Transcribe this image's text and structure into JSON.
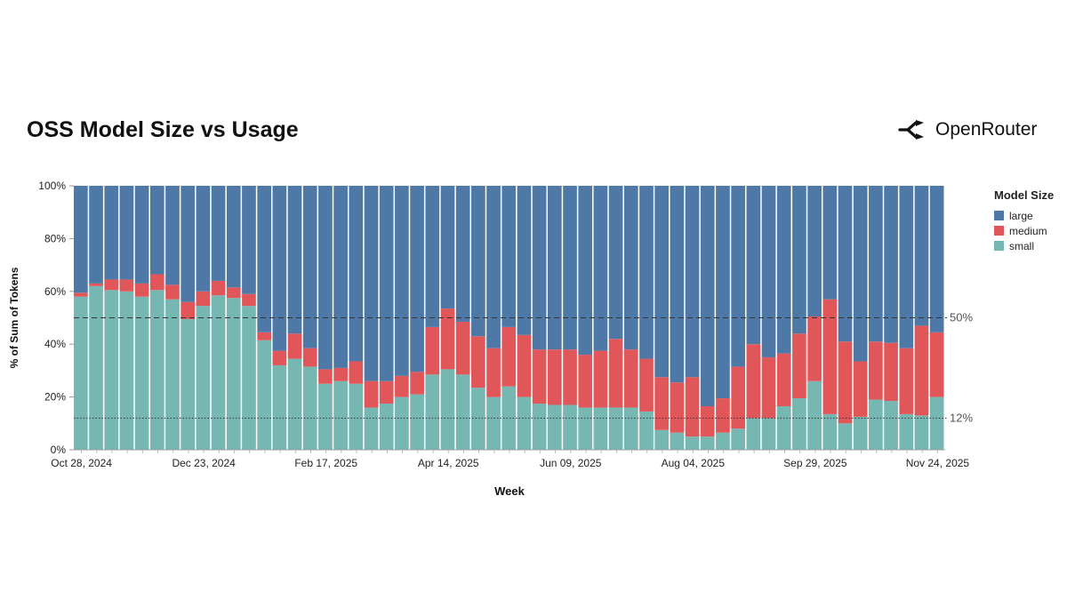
{
  "header": {
    "title": "OSS Model Size vs Usage",
    "brand": "OpenRouter"
  },
  "colors": {
    "large": "#4E79A7",
    "medium": "#E15759",
    "small": "#76B7B2"
  },
  "chart_data": {
    "type": "bar",
    "stacked": true,
    "xlabel": "Week",
    "ylabel": "% of Sum of Tokens",
    "ylim": [
      0,
      100
    ],
    "y_ticks": [
      "0%",
      "20%",
      "40%",
      "60%",
      "80%",
      "100%"
    ],
    "x_tick_labels": [
      "Oct 28, 2024",
      "Dec 23, 2024",
      "Feb 17, 2025",
      "Apr 14, 2025",
      "Jun 09, 2025",
      "Aug 04, 2025",
      "Sep 29, 2025",
      "Nov 24, 2025"
    ],
    "x_tick_indices": [
      0,
      8,
      16,
      24,
      32,
      40,
      48,
      56
    ],
    "legend_title": "Model Size",
    "legend_position": "right",
    "reference_lines": [
      {
        "value": 50,
        "label": "50%",
        "style": "dashed"
      },
      {
        "value": 12,
        "label": "12%",
        "style": "dotted"
      }
    ],
    "series": [
      {
        "name": "small",
        "values": [
          58,
          62,
          60.5,
          60,
          58,
          60.5,
          57,
          49.5,
          54.5,
          58.5,
          57.5,
          54.5,
          41.5,
          32,
          34.5,
          31.5,
          25,
          26,
          25,
          16,
          17.5,
          20,
          21,
          28.5,
          30.5,
          28.5,
          23.5,
          20,
          24,
          20,
          17.5,
          17,
          17,
          16,
          16,
          16,
          16,
          14.5,
          7.5,
          6.5,
          5,
          5,
          6.5,
          8,
          12,
          12,
          16.5,
          19.5,
          26,
          13.5,
          10,
          12.5,
          19,
          18.5,
          13.5,
          13,
          20
        ]
      },
      {
        "name": "medium",
        "values": [
          1.5,
          1,
          4,
          4.5,
          5,
          6,
          5.5,
          6.5,
          5.5,
          5.5,
          4,
          4.5,
          3,
          5.5,
          9.5,
          7,
          5.5,
          5,
          8.5,
          10,
          8.5,
          8,
          8.5,
          18,
          23,
          20,
          19.5,
          18.5,
          22.5,
          23.5,
          20.5,
          21,
          21,
          20,
          21.5,
          26,
          22,
          20,
          20,
          19,
          22.5,
          11.5,
          13,
          23.5,
          28,
          23,
          20,
          24.5,
          24.5,
          43.5,
          31,
          21,
          22,
          22,
          25,
          34,
          24.5
        ]
      },
      {
        "name": "large",
        "values": [
          40.5,
          37,
          35.5,
          35.5,
          37,
          33.5,
          37.5,
          44,
          40,
          36,
          38.5,
          41,
          55.5,
          62.5,
          56,
          61.5,
          69.5,
          69,
          66.5,
          74,
          74,
          72,
          70.5,
          53.5,
          46.5,
          51.5,
          57,
          61.5,
          53.5,
          56.5,
          62,
          62,
          62,
          64,
          62.5,
          58,
          62,
          65.5,
          72.5,
          74.5,
          72.5,
          83.5,
          80.5,
          68.5,
          60,
          65,
          63.5,
          56,
          49.5,
          43,
          59,
          66.5,
          59,
          59.5,
          61.5,
          53,
          55.5
        ]
      }
    ]
  }
}
